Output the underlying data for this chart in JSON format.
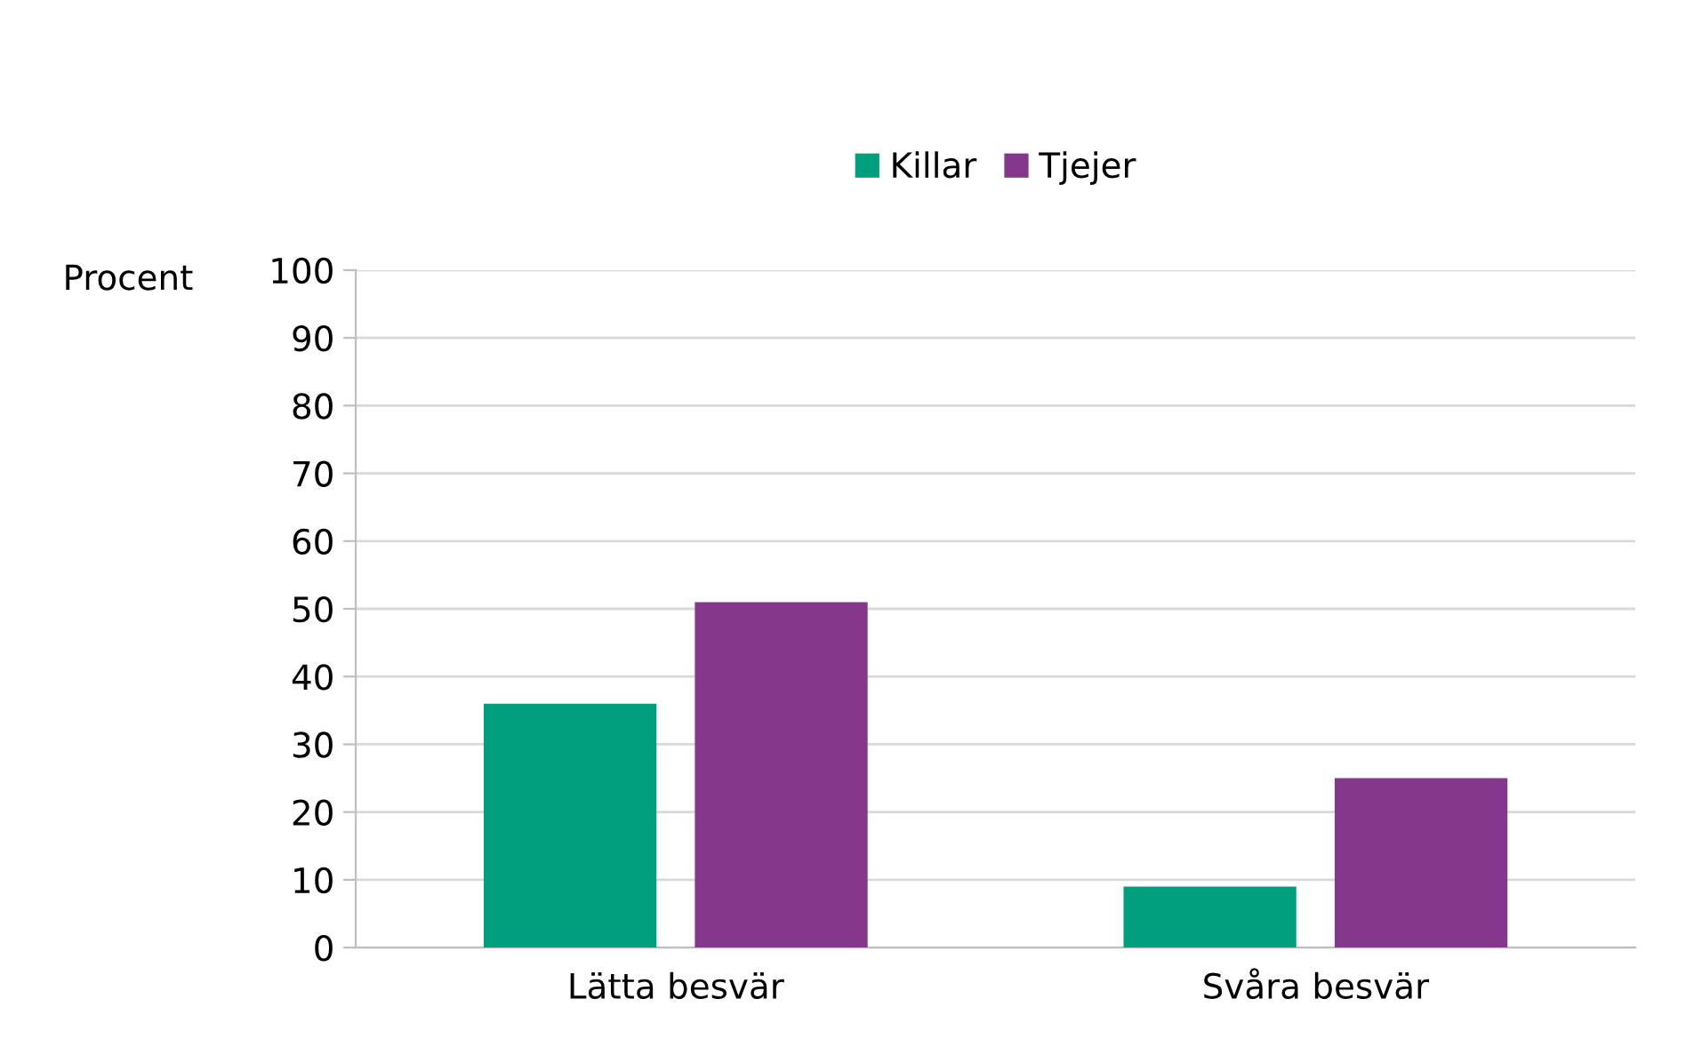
{
  "chart_data": {
    "type": "bar",
    "ylabel": "Procent",
    "categories": [
      "Lätta besvär",
      "Svåra besvär"
    ],
    "series": [
      {
        "name": "Killar",
        "color": "#00a07f",
        "values": [
          36,
          9
        ]
      },
      {
        "name": "Tjejer",
        "color": "#84378b",
        "values": [
          51,
          25
        ]
      }
    ],
    "ylim": [
      0,
      100
    ],
    "yticks": [
      0,
      10,
      20,
      30,
      40,
      50,
      60,
      70,
      80,
      90,
      100
    ],
    "grid": "y",
    "legend": "top"
  }
}
